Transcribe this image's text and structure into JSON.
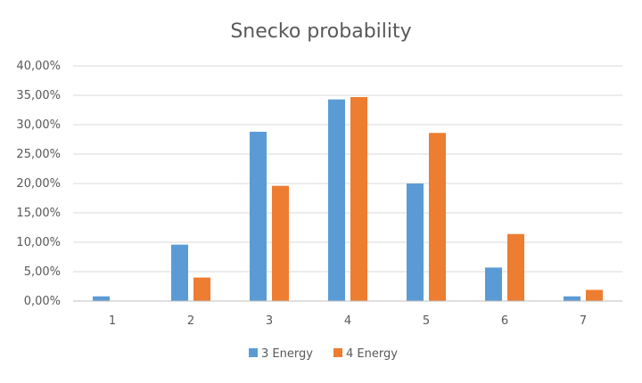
{
  "chart_data": {
    "type": "bar",
    "title": "Snecko probability",
    "categories": [
      "1",
      "2",
      "3",
      "4",
      "5",
      "6",
      "7"
    ],
    "series": [
      {
        "name": "3 Energy",
        "color": "#5b9bd5",
        "values": [
          0.8,
          9.6,
          28.8,
          34.3,
          20.0,
          5.7,
          0.8
        ]
      },
      {
        "name": "4 Energy",
        "color": "#ed7d31",
        "values": [
          0.0,
          4.0,
          19.6,
          34.7,
          28.6,
          11.4,
          1.9
        ]
      }
    ],
    "y_ticks": [
      "0,00%",
      "5,00%",
      "10,00%",
      "15,00%",
      "20,00%",
      "25,00%",
      "30,00%",
      "35,00%",
      "40,00%"
    ],
    "ylim": [
      0,
      40
    ],
    "grid": true,
    "legend_position": "bottom",
    "gridline_color": "#d9d9d9",
    "axis_color": "#bfbfbf"
  }
}
